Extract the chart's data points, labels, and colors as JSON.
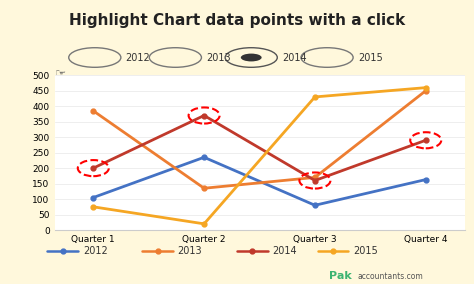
{
  "title": "Highlight Chart data points with a click",
  "title_bg": "#F5C200",
  "outer_bg": "#FFF8DC",
  "chart_bg": "#FFFFFF",
  "quarters": [
    "Quarter 1",
    "Quarter 2",
    "Quarter 3",
    "Quarter 4"
  ],
  "series_order": [
    "2012",
    "2013",
    "2014",
    "2015"
  ],
  "series": {
    "2012": {
      "values": [
        105,
        235,
        80,
        163
      ],
      "color": "#4472C4"
    },
    "2013": {
      "values": [
        385,
        135,
        170,
        450
      ],
      "color": "#ED7D31"
    },
    "2014": {
      "values": [
        200,
        370,
        160,
        290
      ],
      "color": "#C0392B"
    },
    "2015": {
      "values": [
        75,
        20,
        430,
        460
      ],
      "color": "#F5A623"
    }
  },
  "highlighted_points_idx": [
    0,
    1,
    2,
    3
  ],
  "highlighted_series": "2014",
  "ylim": [
    0,
    500
  ],
  "yticks": [
    0,
    50,
    100,
    150,
    200,
    250,
    300,
    350,
    400,
    450,
    500
  ],
  "radio_labels": [
    "2012",
    "2013",
    "2014",
    "2015"
  ],
  "radio_selected": "2014",
  "legend_labels": [
    "2012",
    "2013",
    "2014",
    "2015"
  ],
  "legend_colors": [
    "#4472C4",
    "#ED7D31",
    "#C0392B",
    "#F5A623"
  ],
  "watermark_green": "Pak",
  "watermark_rest": "accountants.com"
}
